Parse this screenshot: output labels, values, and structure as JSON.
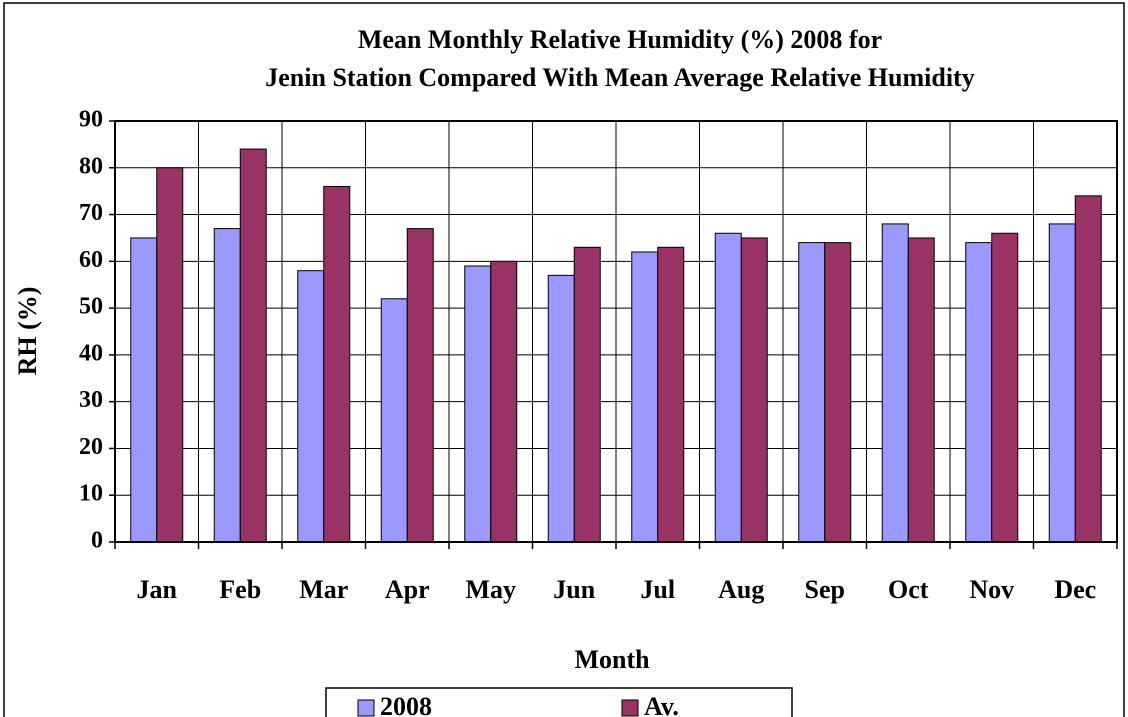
{
  "chart_data": {
    "type": "bar",
    "title": [
      "Mean Monthly Relative Humidity (%) 2008 for",
      "Jenin Station Compared With Mean Average Relative Humidity"
    ],
    "x_label": "Month",
    "y_label": "RH (%)",
    "categories": [
      "Jan",
      "Feb",
      "Mar",
      "Apr",
      "May",
      "Jun",
      "Jul",
      "Aug",
      "Sep",
      "Oct",
      "Nov",
      "Dec"
    ],
    "series": [
      {
        "name": "2008",
        "color": "#9999ff",
        "values": [
          65,
          67,
          58,
          52,
          59,
          57,
          62,
          66,
          64,
          68,
          64,
          68
        ]
      },
      {
        "name": "Av.",
        "color": "#993366",
        "values": [
          80,
          84,
          76,
          67,
          60,
          63,
          63,
          65,
          64,
          65,
          66,
          74
        ]
      }
    ],
    "ylim": [
      0,
      90
    ],
    "yticks": [
      0,
      10,
      20,
      30,
      40,
      50,
      60,
      70,
      80,
      90
    ],
    "grid": true,
    "legend": "bottom"
  }
}
